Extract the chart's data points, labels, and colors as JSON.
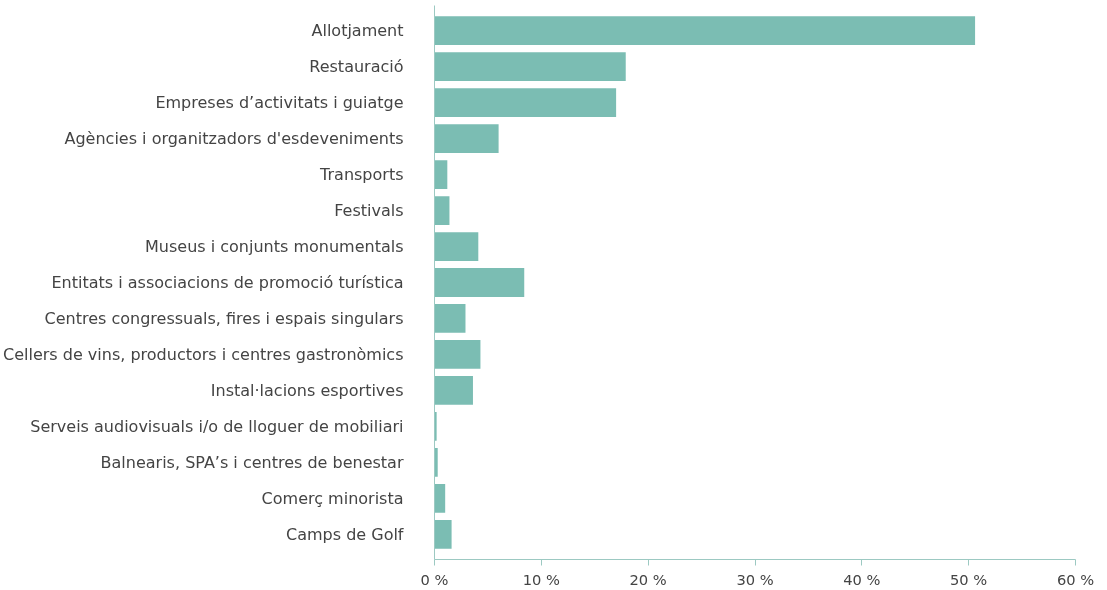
{
  "chart_data": {
    "type": "bar",
    "orientation": "horizontal",
    "categories": [
      "Allotjament",
      "Restauració",
      "Empreses d’activitats i guiatge",
      "Agències i organitzadors d'esdeveniments",
      "Transports",
      "Festivals",
      "Museus i conjunts monumentals",
      "Entitats i associacions de promoció turística",
      "Centres congressuals, fires i espais singulars",
      "Cellers de vins, productors i centres gastronòmics",
      "Instal·lacions esportives",
      "Serveis audiovisuals i/o de lloguer de mobiliari",
      "Balnearis, SPA’s i centres de benestar",
      "Comerç minorista",
      "Camps de Golf"
    ],
    "values": [
      50.6,
      17.9,
      17.0,
      6.0,
      1.2,
      1.4,
      4.1,
      8.4,
      2.9,
      4.3,
      3.6,
      0.2,
      0.3,
      1.0,
      1.6
    ],
    "color": "#7bbdb3",
    "xlim": [
      0,
      60
    ],
    "xticks": [
      {
        "value": 0,
        "label": "0 %"
      },
      {
        "value": 10,
        "label": "10 %"
      },
      {
        "value": 20,
        "label": "20 %"
      },
      {
        "value": 30,
        "label": "30 %"
      },
      {
        "value": 40,
        "label": "40 %"
      },
      {
        "value": 50,
        "label": "50 %"
      },
      {
        "value": 60,
        "label": "60 %"
      }
    ],
    "grid": false
  }
}
